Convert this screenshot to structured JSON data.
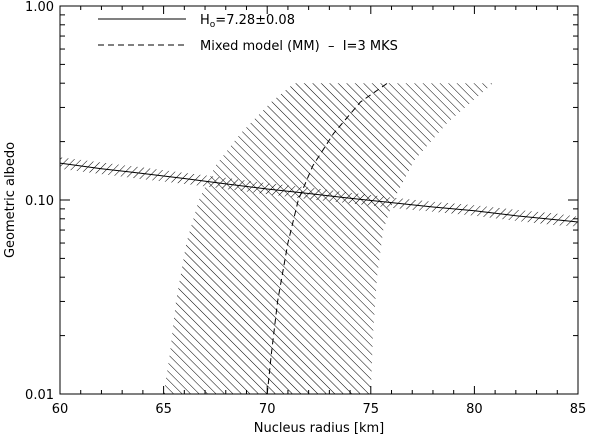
{
  "chart_data": {
    "type": "line",
    "title": "",
    "xlabel": "Nucleus radius [km]",
    "ylabel": "Geometric albedo",
    "xlim": [
      60,
      85
    ],
    "ylim": [
      0.01,
      1.0
    ],
    "yscale": "log",
    "grid": false,
    "legend_position": "top-left",
    "x_ticks": [
      60,
      65,
      70,
      75,
      80,
      85
    ],
    "x_tick_labels": [
      "60",
      "65",
      "70",
      "75",
      "80",
      "85"
    ],
    "y_ticks": [
      0.01,
      0.1,
      1.0
    ],
    "y_tick_labels": [
      "0.01",
      "0.10",
      "1.00"
    ],
    "legend": [
      {
        "style": "solid",
        "label_main": "H",
        "label_sub": "o",
        "label_rest": "=7.28±0.08"
      },
      {
        "style": "dashed",
        "label_main": "Mixed model (MM)  –  I=3 MKS",
        "label_sub": "",
        "label_rest": ""
      }
    ],
    "series": [
      {
        "style": "solid",
        "x": [
          60,
          62,
          64,
          66,
          68,
          70,
          72,
          74,
          76,
          78,
          80,
          82,
          84,
          85
        ],
        "y": [
          0.155,
          0.145,
          0.137,
          0.129,
          0.121,
          0.114,
          0.108,
          0.102,
          0.097,
          0.092,
          0.088,
          0.083,
          0.079,
          0.077
        ],
        "band_upper": [
          0.166,
          0.156,
          0.147,
          0.138,
          0.13,
          0.122,
          0.116,
          0.109,
          0.103,
          0.098,
          0.094,
          0.089,
          0.085,
          0.082
        ],
        "band_lower": [
          0.145,
          0.136,
          0.128,
          0.121,
          0.114,
          0.107,
          0.101,
          0.096,
          0.091,
          0.087,
          0.083,
          0.078,
          0.074,
          0.073
        ]
      },
      {
        "style": "dashed",
        "x": [
          70.0,
          70.2,
          70.5,
          71.0,
          71.5,
          72.2,
          73.2,
          74.5,
          75.8
        ],
        "y": [
          0.01,
          0.016,
          0.03,
          0.06,
          0.1,
          0.15,
          0.22,
          0.32,
          0.4
        ]
      }
    ],
    "shaded_region": {
      "left_x": [
        65.0,
        65.3,
        65.6,
        66.1,
        66.7,
        67.5,
        68.7,
        70.2,
        71.3
      ],
      "left_y": [
        0.01,
        0.016,
        0.03,
        0.06,
        0.1,
        0.15,
        0.22,
        0.32,
        0.4
      ],
      "right_x": [
        75.0,
        75.1,
        75.3,
        75.6,
        76.1,
        77.1,
        78.7,
        80.9
      ],
      "right_y": [
        0.01,
        0.02,
        0.04,
        0.07,
        0.1,
        0.16,
        0.25,
        0.4
      ],
      "top_y": 0.4
    }
  }
}
